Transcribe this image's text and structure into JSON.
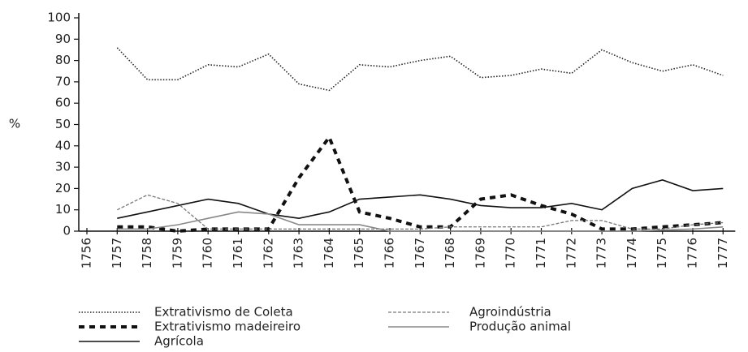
{
  "chart_data": {
    "type": "line",
    "ylabel": "%",
    "categories": [
      "1756",
      "1757",
      "1758",
      "1759",
      "1760",
      "1761",
      "1762",
      "1763",
      "1764",
      "1765",
      "1766",
      "1767",
      "1768",
      "1769",
      "1770",
      "1771",
      "1772",
      "1773",
      "1774",
      "1775",
      "1776",
      "1777"
    ],
    "ylim": [
      0,
      100
    ],
    "yticks": [
      0,
      10,
      20,
      30,
      40,
      50,
      60,
      70,
      80,
      90,
      100
    ],
    "series": [
      {
        "name": "Extrativismo de Coleta",
        "color": "#222222",
        "dash": "dotted",
        "values": [
          null,
          86,
          71,
          71,
          78,
          77,
          83,
          69,
          66,
          78,
          77,
          80,
          82,
          72,
          73,
          76,
          74,
          85,
          79,
          75,
          78,
          73
        ]
      },
      {
        "name": "Extrativismo madeireiro",
        "color": "#111111",
        "dash": "heavy-dashed",
        "values": [
          null,
          2,
          2,
          0,
          1,
          1,
          1,
          25,
          44,
          9,
          6,
          2,
          2,
          15,
          17,
          12,
          8,
          1,
          1,
          2,
          3,
          4
        ]
      },
      {
        "name": "Agrícola",
        "color": "#111111",
        "dash": "solid",
        "values": [
          null,
          6,
          9,
          12,
          15,
          13,
          8,
          6,
          9,
          15,
          16,
          17,
          15,
          12,
          11,
          11,
          13,
          10,
          20,
          24,
          19,
          20
        ]
      },
      {
        "name": "Agroindústria",
        "color": "#777777",
        "dash": "dashed",
        "values": [
          null,
          10,
          17,
          13,
          1,
          1,
          1,
          1,
          1,
          1,
          1,
          1,
          2,
          2,
          2,
          2,
          5,
          5,
          1,
          1,
          3,
          4
        ]
      },
      {
        "name": "Produção animal",
        "color": "#888888",
        "dash": "solid",
        "values": [
          null,
          1,
          1,
          3,
          6,
          9,
          8,
          3,
          3,
          3,
          0,
          0,
          0,
          0,
          0,
          0,
          0,
          0,
          0,
          0.5,
          1,
          2
        ]
      }
    ]
  }
}
